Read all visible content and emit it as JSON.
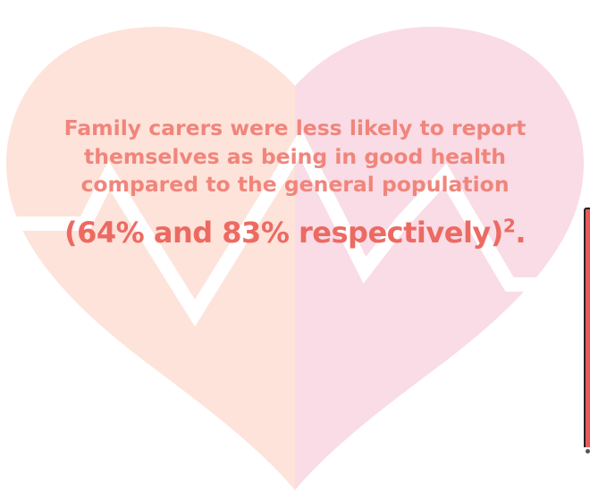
{
  "statement": "Family carers were less likely to report themselves as being in good health compared to the general population",
  "figures": "(64% and 83% respectively)",
  "footnote_ref": "2",
  "palette": {
    "heart_left": "#fde3da",
    "heart_right": "#f9dce5",
    "text": "#f0857c",
    "figures_text": "#ec6a62",
    "pulse_line": "#ffffff"
  },
  "icons": [
    "heart-icon",
    "heartbeat-line-icon"
  ]
}
